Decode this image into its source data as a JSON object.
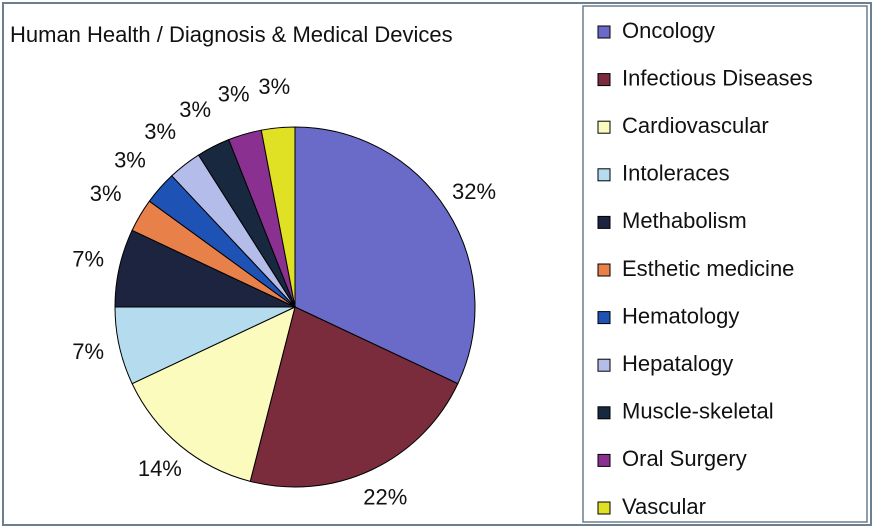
{
  "chart_data": {
    "type": "pie",
    "title": "Human Health / Diagnosis & Medical Devices",
    "categories": [
      "Oncology",
      "Infectious Diseases",
      "Cardiovascular",
      "Intoleraces",
      "Methabolism",
      "Esthetic medicine",
      "Hematology",
      "Hepatalogy",
      "Muscle-skeletal",
      "Oral Surgery",
      "Vascular"
    ],
    "values": [
      32,
      22,
      14,
      7,
      7,
      3,
      3,
      3,
      3,
      3,
      3
    ],
    "value_labels": [
      "32%",
      "22%",
      "14%",
      "7%",
      "7%",
      "3%",
      "3%",
      "3%",
      "3%",
      "3%",
      "3%"
    ],
    "colors": [
      "#6a6ac8",
      "#7a2c3c",
      "#fbfbbe",
      "#b4dcee",
      "#1c2440",
      "#e8804a",
      "#1e52b4",
      "#b4bcea",
      "#18283e",
      "#8a3090",
      "#e0e024"
    ],
    "legend": "right"
  }
}
